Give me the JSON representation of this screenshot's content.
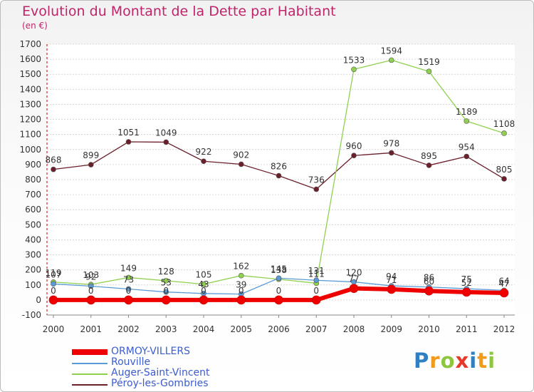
{
  "header": {
    "title": "Evolution du Montant de la Dette par Habitant",
    "subtitle": "(en €)"
  },
  "logo": {
    "text": "Proxiti",
    "letters": [
      {
        "ch": "P",
        "color": "#2f7fc2"
      },
      {
        "ch": "r",
        "color": "#f29a1b"
      },
      {
        "ch": "o",
        "color": "#8ec63f"
      },
      {
        "ch": "x",
        "color": "#e8392b"
      },
      {
        "ch": "i",
        "color": "#2f7fc2"
      },
      {
        "ch": "t",
        "color": "#f29a1b"
      },
      {
        "ch": "i",
        "color": "#8ec63f"
      }
    ]
  },
  "chart_data": {
    "type": "line",
    "title": "Evolution du Montant de la Dette par Habitant",
    "subtitle": "(en €)",
    "x": [
      "2000",
      "2001",
      "2002",
      "2003",
      "2004",
      "2005",
      "2006",
      "2007",
      "2008",
      "2009",
      "2010",
      "2011",
      "2012"
    ],
    "ylim": [
      -100,
      1700
    ],
    "yticks": [
      -100,
      0,
      100,
      200,
      300,
      400,
      500,
      600,
      700,
      800,
      900,
      1000,
      1100,
      1200,
      1300,
      1400,
      1500,
      1600,
      1700
    ],
    "grid": true,
    "legend_position": "bottom-left",
    "series": [
      {
        "name": "ORMOY-VILLERS",
        "color": "#ee0000",
        "values": [
          0,
          0,
          0,
          0,
          0,
          0,
          0,
          0,
          77,
          71,
          60,
          52,
          47
        ],
        "labels": [
          "0",
          "0",
          "0",
          "0",
          "0",
          "0",
          "0",
          "0",
          "77",
          "71",
          "60",
          "52",
          "47"
        ]
      },
      {
        "name": "Rouville",
        "color": "#5b9bd5",
        "values": [
          107,
          92,
          73,
          53,
          43,
          39,
          145,
          131,
          120,
          94,
          86,
          75,
          64
        ],
        "labels": [
          "107",
          "92",
          "73",
          "53",
          "43",
          "39",
          "145",
          "131",
          "120",
          "94",
          "86",
          "75",
          "64"
        ]
      },
      {
        "name": "Auger-Saint-Vincent",
        "color": "#8fd14f",
        "values": [
          119,
          103,
          149,
          128,
          105,
          162,
          138,
          111,
          1533,
          1594,
          1519,
          1189,
          1108
        ],
        "labels": [
          "119",
          "103",
          "149",
          "128",
          "105",
          "162",
          "138",
          "111",
          "1533",
          "1594",
          "1519",
          "1189",
          "1108"
        ]
      },
      {
        "name": "Péroy-les-Gombries",
        "color": "#6b1f2a",
        "values": [
          868,
          899,
          1051,
          1049,
          922,
          902,
          826,
          736,
          960,
          978,
          895,
          954,
          805
        ],
        "labels": [
          "868",
          "899",
          "1051",
          "1049",
          "922",
          "902",
          "826",
          "736",
          "960",
          "978",
          "895",
          "954",
          "805"
        ]
      }
    ]
  }
}
